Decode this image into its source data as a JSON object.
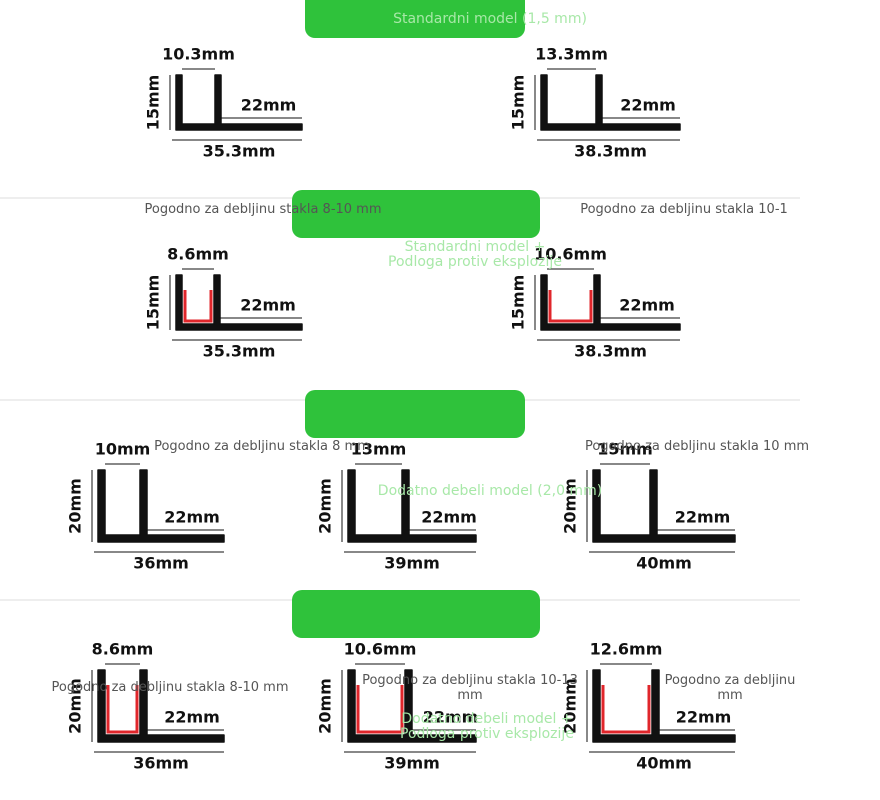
{
  "sections": [
    {
      "tab": [
        "Standardni model (1,5 mm)"
      ],
      "notes": [
        [
          "Pogodno za debljinu stakla 8-10 mm"
        ],
        [
          "Pogodno za debljinu stakla 10-1"
        ]
      ],
      "profiles": [
        {
          "gap": "10.3mm",
          "height": "15mm",
          "flange": "22mm",
          "total": "35.3mm"
        },
        {
          "gap": "13.3mm",
          "height": "15mm",
          "flange": "22mm",
          "total": "38.3mm"
        }
      ]
    },
    {
      "tab": [
        "Standardni model +",
        "Podloga protiv eksplozije"
      ],
      "notes": [
        [
          "Pogodno za debljinu stakla 8 mm"
        ],
        [
          "Pogodno za debljinu stakla 10 mm"
        ]
      ],
      "profiles": [
        {
          "gap": "8.6mm",
          "height": "15mm",
          "flange": "22mm",
          "total": "35.3mm"
        },
        {
          "gap": "10.6mm",
          "height": "15mm",
          "flange": "22mm",
          "total": "38.3mm"
        }
      ]
    },
    {
      "tab": [
        "Dodatno debeli model (2,0 mm)"
      ],
      "notes": [
        [
          "Pogodno za debljinu stakla 8-10 mm"
        ],
        [
          "Pogodno za debljinu stakla 10-13",
          "mm"
        ],
        [
          "Pogodno za debljinu",
          "mm"
        ]
      ],
      "profiles": [
        {
          "gap": "10mm",
          "height": "20mm",
          "flange": "22mm",
          "total": "36mm"
        },
        {
          "gap": "13mm",
          "height": "20mm",
          "flange": "22mm",
          "total": "39mm"
        },
        {
          "gap": "15mm",
          "height": "20mm",
          "flange": "22mm",
          "total": "40mm"
        }
      ]
    },
    {
      "tab": [
        "Dodatno debeli model +",
        "Podloga protiv eksplozije"
      ],
      "notes": [],
      "profiles": [
        {
          "gap": "8.6mm",
          "height": "20mm",
          "flange": "22mm",
          "total": "36mm"
        },
        {
          "gap": "10.6mm",
          "height": "20mm",
          "flange": "22mm",
          "total": "39mm"
        },
        {
          "gap": "12.6mm",
          "height": "20mm",
          "flange": "22mm",
          "total": "40mm"
        }
      ]
    }
  ]
}
